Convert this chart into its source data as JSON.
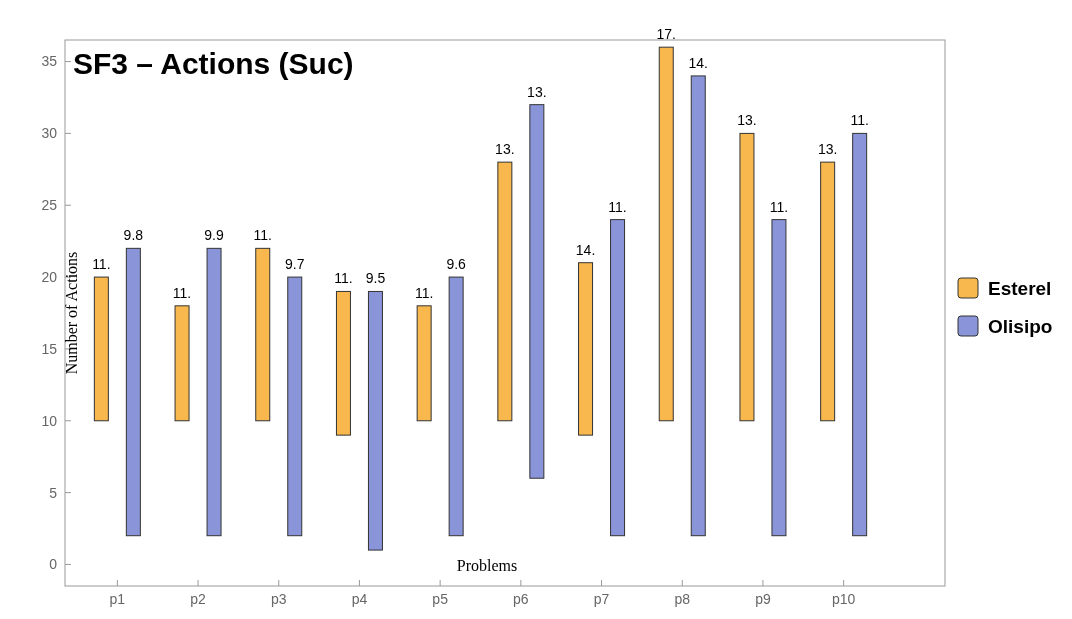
{
  "chart_data": {
    "type": "bar",
    "title": "SF3 – Actions (Suc)",
    "xlabel": "Problems",
    "ylabel": "Number of Actions",
    "categories": [
      "p1",
      "p2",
      "p3",
      "p4",
      "p5",
      "p6",
      "p7",
      "p8",
      "p9",
      "p10"
    ],
    "series": [
      {
        "name": "Esterel",
        "color": "#f8b84e",
        "base": [
          10,
          10,
          10,
          9,
          10,
          10,
          9,
          10,
          10,
          10
        ],
        "values": [
          10,
          8,
          12,
          10,
          8,
          18,
          12,
          26,
          20,
          18
        ]
      },
      {
        "name": "Olisipo",
        "color": "#8a94d8",
        "base": [
          2,
          2,
          2,
          1,
          2,
          6,
          2,
          2,
          2,
          2
        ],
        "values": [
          20,
          20,
          18,
          18,
          18,
          26,
          22,
          32,
          22,
          28
        ]
      }
    ],
    "annotations": [
      "11.",
      "9.8",
      "11.",
      "9.9",
      "11.",
      "9.7",
      "11.",
      "9.5",
      "11.",
      "9.6",
      "13.",
      "13.",
      "14.",
      "11.",
      "17.",
      "14.",
      "13.",
      "11.",
      "13.",
      "11."
    ],
    "ylim": [
      -1.5,
      36.5
    ],
    "yticks": [
      0,
      5,
      10,
      15,
      20,
      25,
      30,
      35
    ],
    "legend": "right"
  }
}
